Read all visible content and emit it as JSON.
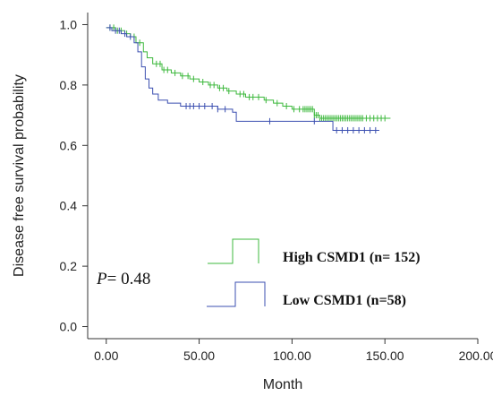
{
  "chart_data": {
    "type": "line",
    "xlabel": "Month",
    "ylabel": "Disease free survival probability",
    "xlim": [
      -10,
      200
    ],
    "ylim": [
      -0.04,
      1.04
    ],
    "xticks": [
      0,
      50,
      100,
      150,
      200
    ],
    "xtick_labels": [
      "0.00",
      "50.00",
      "100.00",
      "150.00",
      "200.00"
    ],
    "yticks": [
      0.0,
      0.2,
      0.4,
      0.6,
      0.8,
      1.0
    ],
    "ytick_labels": [
      "0.0",
      "0.2",
      "0.4",
      "0.6",
      "0.8",
      "1.0"
    ],
    "grid": false,
    "annotation": {
      "italic": "P",
      "rest": "= 0.48"
    },
    "legend_position": "bottom-right",
    "series": [
      {
        "name": "High CSMD1 (n= 152)",
        "color": "#3cb83c",
        "step_x": [
          0,
          5,
          10,
          13,
          16,
          20,
          22,
          25,
          30,
          35,
          40,
          45,
          50,
          55,
          60,
          65,
          70,
          75,
          80,
          85,
          90,
          95,
          100,
          105,
          110,
          112,
          115,
          120,
          153
        ],
        "step_y": [
          0.99,
          0.98,
          0.97,
          0.96,
          0.94,
          0.91,
          0.89,
          0.87,
          0.85,
          0.84,
          0.83,
          0.82,
          0.81,
          0.8,
          0.79,
          0.78,
          0.77,
          0.76,
          0.76,
          0.75,
          0.74,
          0.73,
          0.72,
          0.72,
          0.72,
          0.7,
          0.69,
          0.69,
          0.69
        ],
        "censor_x": [
          2,
          4,
          6,
          8,
          11,
          15,
          18,
          27,
          29,
          31,
          33,
          37,
          41,
          44,
          47,
          52,
          56,
          58,
          61,
          63,
          66,
          72,
          74,
          77,
          79,
          82,
          86,
          92,
          97,
          101,
          104,
          106,
          107,
          108,
          109,
          110,
          111,
          112,
          113,
          114,
          115,
          116,
          117,
          118,
          119,
          120,
          121,
          122,
          123,
          124,
          125,
          126,
          127,
          128,
          129,
          130,
          131,
          132,
          133,
          134,
          135,
          136,
          137,
          138,
          140,
          142,
          144,
          146,
          148,
          150
        ]
      },
      {
        "name": "Low CSMD1 (n=58)",
        "color": "#3b4fb0",
        "step_x": [
          0,
          3,
          8,
          11,
          15,
          17,
          19,
          21,
          23,
          25,
          28,
          33,
          40,
          50,
          60,
          68,
          70,
          120,
          122,
          147
        ],
        "step_y": [
          0.99,
          0.98,
          0.97,
          0.96,
          0.94,
          0.91,
          0.86,
          0.82,
          0.79,
          0.77,
          0.75,
          0.74,
          0.73,
          0.73,
          0.72,
          0.71,
          0.68,
          0.68,
          0.65,
          0.65
        ],
        "censor_x": [
          2,
          5,
          7,
          10,
          13,
          43,
          45,
          47,
          50,
          53,
          57,
          60,
          64,
          88,
          112,
          124,
          127,
          130,
          133,
          136,
          139,
          142,
          145
        ]
      }
    ]
  }
}
